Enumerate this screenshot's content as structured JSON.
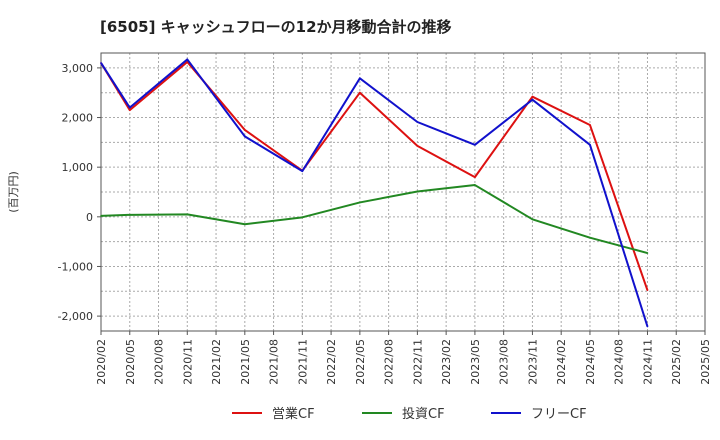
{
  "chart_data": {
    "type": "line",
    "title": "[6505]  キャッシュフローの12か月移動合計の推移",
    "ylabel": "(百万円)",
    "xlabel": "",
    "ylim": [
      -2300,
      3300
    ],
    "yticks": [
      3000,
      2000,
      1000,
      0,
      -1000,
      -2000
    ],
    "ytick_labels": [
      "3,000",
      "2,000",
      "1,000",
      "0",
      "-1,000",
      "-2,000"
    ],
    "categories": [
      "2020/02",
      "2020/05",
      "2020/08",
      "2020/11",
      "2021/02",
      "2021/05",
      "2021/08",
      "2021/11",
      "2022/02",
      "2022/05",
      "2022/08",
      "2022/11",
      "2023/02",
      "2023/05",
      "2023/08",
      "2023/11",
      "2024/02",
      "2024/05",
      "2024/08",
      "2024/11",
      "2025/02",
      "2025/05"
    ],
    "grid": true,
    "legend_position": "bottom",
    "series": [
      {
        "name": "営業CF",
        "color": "#dd1111",
        "points": [
          [
            "2020/02",
            3100
          ],
          [
            "2020/05",
            2150
          ],
          [
            "2020/11",
            3120
          ],
          [
            "2021/05",
            1750
          ],
          [
            "2021/11",
            930
          ],
          [
            "2022/05",
            2500
          ],
          [
            "2022/11",
            1430
          ],
          [
            "2023/05",
            800
          ],
          [
            "2023/11",
            2420
          ],
          [
            "2024/05",
            1850
          ],
          [
            "2024/11",
            -1480
          ]
        ]
      },
      {
        "name": "投資CF",
        "color": "#228822",
        "points": [
          [
            "2020/02",
            20
          ],
          [
            "2020/05",
            40
          ],
          [
            "2020/11",
            50
          ],
          [
            "2021/05",
            -150
          ],
          [
            "2021/11",
            -10
          ],
          [
            "2022/05",
            290
          ],
          [
            "2022/11",
            510
          ],
          [
            "2023/05",
            640
          ],
          [
            "2023/11",
            -50
          ],
          [
            "2024/05",
            -420
          ],
          [
            "2024/11",
            -730
          ]
        ]
      },
      {
        "name": "フリーCF",
        "color": "#1111cc",
        "points": [
          [
            "2020/02",
            3100
          ],
          [
            "2020/05",
            2200
          ],
          [
            "2020/11",
            3170
          ],
          [
            "2021/05",
            1620
          ],
          [
            "2021/11",
            920
          ],
          [
            "2022/05",
            2790
          ],
          [
            "2022/11",
            1910
          ],
          [
            "2023/05",
            1450
          ],
          [
            "2023/11",
            2360
          ],
          [
            "2024/05",
            1450
          ],
          [
            "2024/11",
            -2210
          ]
        ]
      }
    ]
  }
}
